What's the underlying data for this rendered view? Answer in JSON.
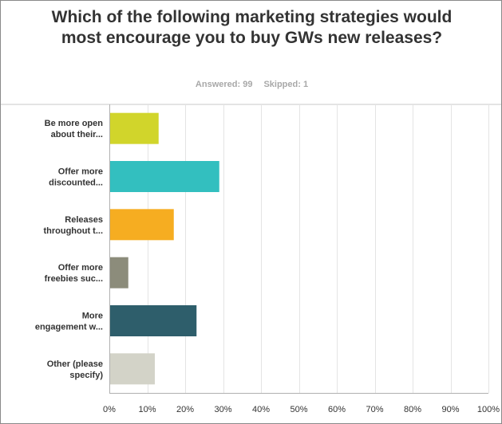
{
  "header": {
    "title": "Which of the following marketing strategies would most encourage you to buy GWs new releases?",
    "answered_label": "Answered: 99",
    "skipped_label": "Skipped: 1"
  },
  "chart_data": {
    "type": "bar",
    "orientation": "horizontal",
    "title": "Which of the following marketing strategies would most encourage you to buy GWs new releases?",
    "xlabel": "",
    "ylabel": "",
    "categories": [
      [
        "Be more open",
        "about their..."
      ],
      [
        "Offer more",
        "discounted..."
      ],
      [
        "Releases",
        "throughout t..."
      ],
      [
        "Offer more",
        "freebies suc..."
      ],
      [
        "More",
        "engagement w..."
      ],
      [
        "Other (please",
        "specify)"
      ]
    ],
    "values": [
      13,
      29,
      17,
      5,
      23,
      12
    ],
    "units": "%",
    "xlim": [
      0,
      100
    ],
    "ticks": [
      0,
      10,
      20,
      30,
      40,
      50,
      60,
      70,
      80,
      90,
      100
    ],
    "tick_labels": [
      "0%",
      "10%",
      "20%",
      "30%",
      "40%",
      "50%",
      "60%",
      "70%",
      "80%",
      "90%",
      "100%"
    ],
    "colors": [
      "#d1d52b",
      "#33bfbf",
      "#f6ad21",
      "#8c8c7b",
      "#2e5e6b",
      "#d3d3c8"
    ],
    "grid": true,
    "legend": "none"
  }
}
